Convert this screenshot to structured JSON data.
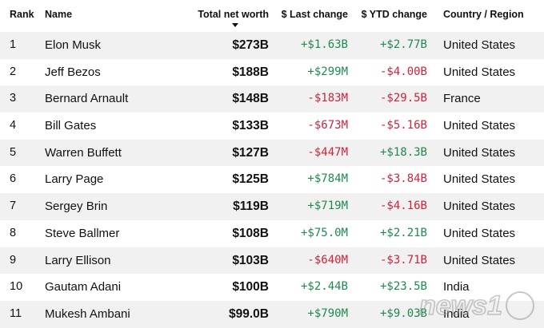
{
  "headers": {
    "rank": "Rank",
    "name": "Name",
    "net_worth": "Total net worth",
    "last_change": "$ Last change",
    "ytd_change": "$ YTD change",
    "country": "Country / Region"
  },
  "sort_indicator": "chevron-down-icon",
  "colors": {
    "positive": "#1e8a4c",
    "negative": "#d0233a",
    "row_shade": "#f1f1f1"
  },
  "rows": [
    {
      "rank": "1",
      "name": "Elon Musk",
      "net_worth": "$273B",
      "last_change": "+$1.63B",
      "ytd_change": "+$2.77B",
      "country": "United States"
    },
    {
      "rank": "2",
      "name": "Jeff Bezos",
      "net_worth": "$188B",
      "last_change": "+$299M",
      "ytd_change": "-$4.00B",
      "country": "United States"
    },
    {
      "rank": "3",
      "name": "Bernard Arnault",
      "net_worth": "$148B",
      "last_change": "-$183M",
      "ytd_change": "-$29.5B",
      "country": "France"
    },
    {
      "rank": "4",
      "name": "Bill Gates",
      "net_worth": "$133B",
      "last_change": "-$673M",
      "ytd_change": "-$5.16B",
      "country": "United States"
    },
    {
      "rank": "5",
      "name": "Warren Buffett",
      "net_worth": "$127B",
      "last_change": "-$447M",
      "ytd_change": "+$18.3B",
      "country": "United States"
    },
    {
      "rank": "6",
      "name": "Larry Page",
      "net_worth": "$125B",
      "last_change": "+$784M",
      "ytd_change": "-$3.84B",
      "country": "United States"
    },
    {
      "rank": "7",
      "name": "Sergey Brin",
      "net_worth": "$119B",
      "last_change": "+$719M",
      "ytd_change": "-$4.16B",
      "country": "United States"
    },
    {
      "rank": "8",
      "name": "Steve Ballmer",
      "net_worth": "$108B",
      "last_change": "+$75.0M",
      "ytd_change": "+$2.21B",
      "country": "United States"
    },
    {
      "rank": "9",
      "name": "Larry Ellison",
      "net_worth": "$103B",
      "last_change": "-$640M",
      "ytd_change": "-$3.71B",
      "country": "United States"
    },
    {
      "rank": "10",
      "name": "Gautam Adani",
      "net_worth": "$100B",
      "last_change": "+$2.44B",
      "ytd_change": "+$23.5B",
      "country": "India"
    },
    {
      "rank": "11",
      "name": "Mukesh Ambani",
      "net_worth": "$99.0B",
      "last_change": "+$790M",
      "ytd_change": "+$9.03B",
      "country": "India"
    }
  ],
  "watermark": {
    "text": "news1"
  }
}
